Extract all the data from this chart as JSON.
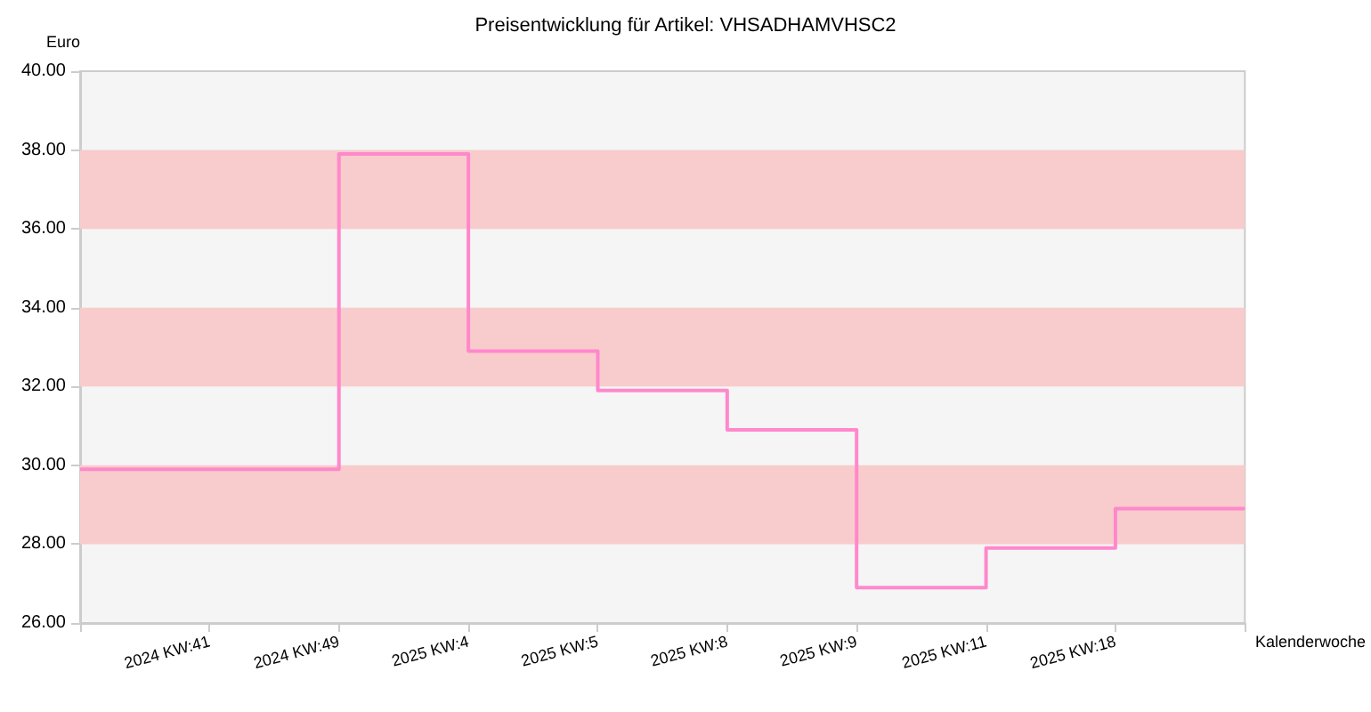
{
  "chart_data": {
    "type": "step",
    "title": "Preisentwicklung für Artikel: VHSADHAMVHSC2",
    "ylabel": "Euro",
    "xlabel": "Kalenderwoche",
    "categories": [
      null,
      "2024 KW:41",
      "2024 KW:49",
      "2025 KW:4",
      "2025 KW:5",
      "2025 KW:8",
      "2025 KW:9",
      "2025 KW:11",
      "2025 KW:18",
      null
    ],
    "values": [
      29.9,
      29.9,
      37.9,
      32.9,
      31.9,
      30.9,
      26.9,
      27.9,
      28.9,
      28.9
    ],
    "color": "#ff88cc",
    "ylim": [
      26,
      40
    ],
    "yticks": [
      {
        "value": 26,
        "label": "26.00"
      },
      {
        "value": 28,
        "label": "28.00"
      },
      {
        "value": 30,
        "label": "30.00"
      },
      {
        "value": 32,
        "label": "32.00"
      },
      {
        "value": 34,
        "label": "34.00"
      },
      {
        "value": 36,
        "label": "36.00"
      },
      {
        "value": 38,
        "label": "38.00"
      },
      {
        "value": 40,
        "label": "40.00"
      }
    ],
    "bands": [
      {
        "axis": "y",
        "from": 28,
        "to": 30,
        "color": "#f8cccc"
      },
      {
        "axis": "y",
        "from": 32,
        "to": 34,
        "color": "#f8cccc"
      },
      {
        "axis": "y",
        "from": 36,
        "to": 38,
        "color": "#f8cccc"
      }
    ],
    "grid": false,
    "marker": "none",
    "line_style": "solid"
  }
}
